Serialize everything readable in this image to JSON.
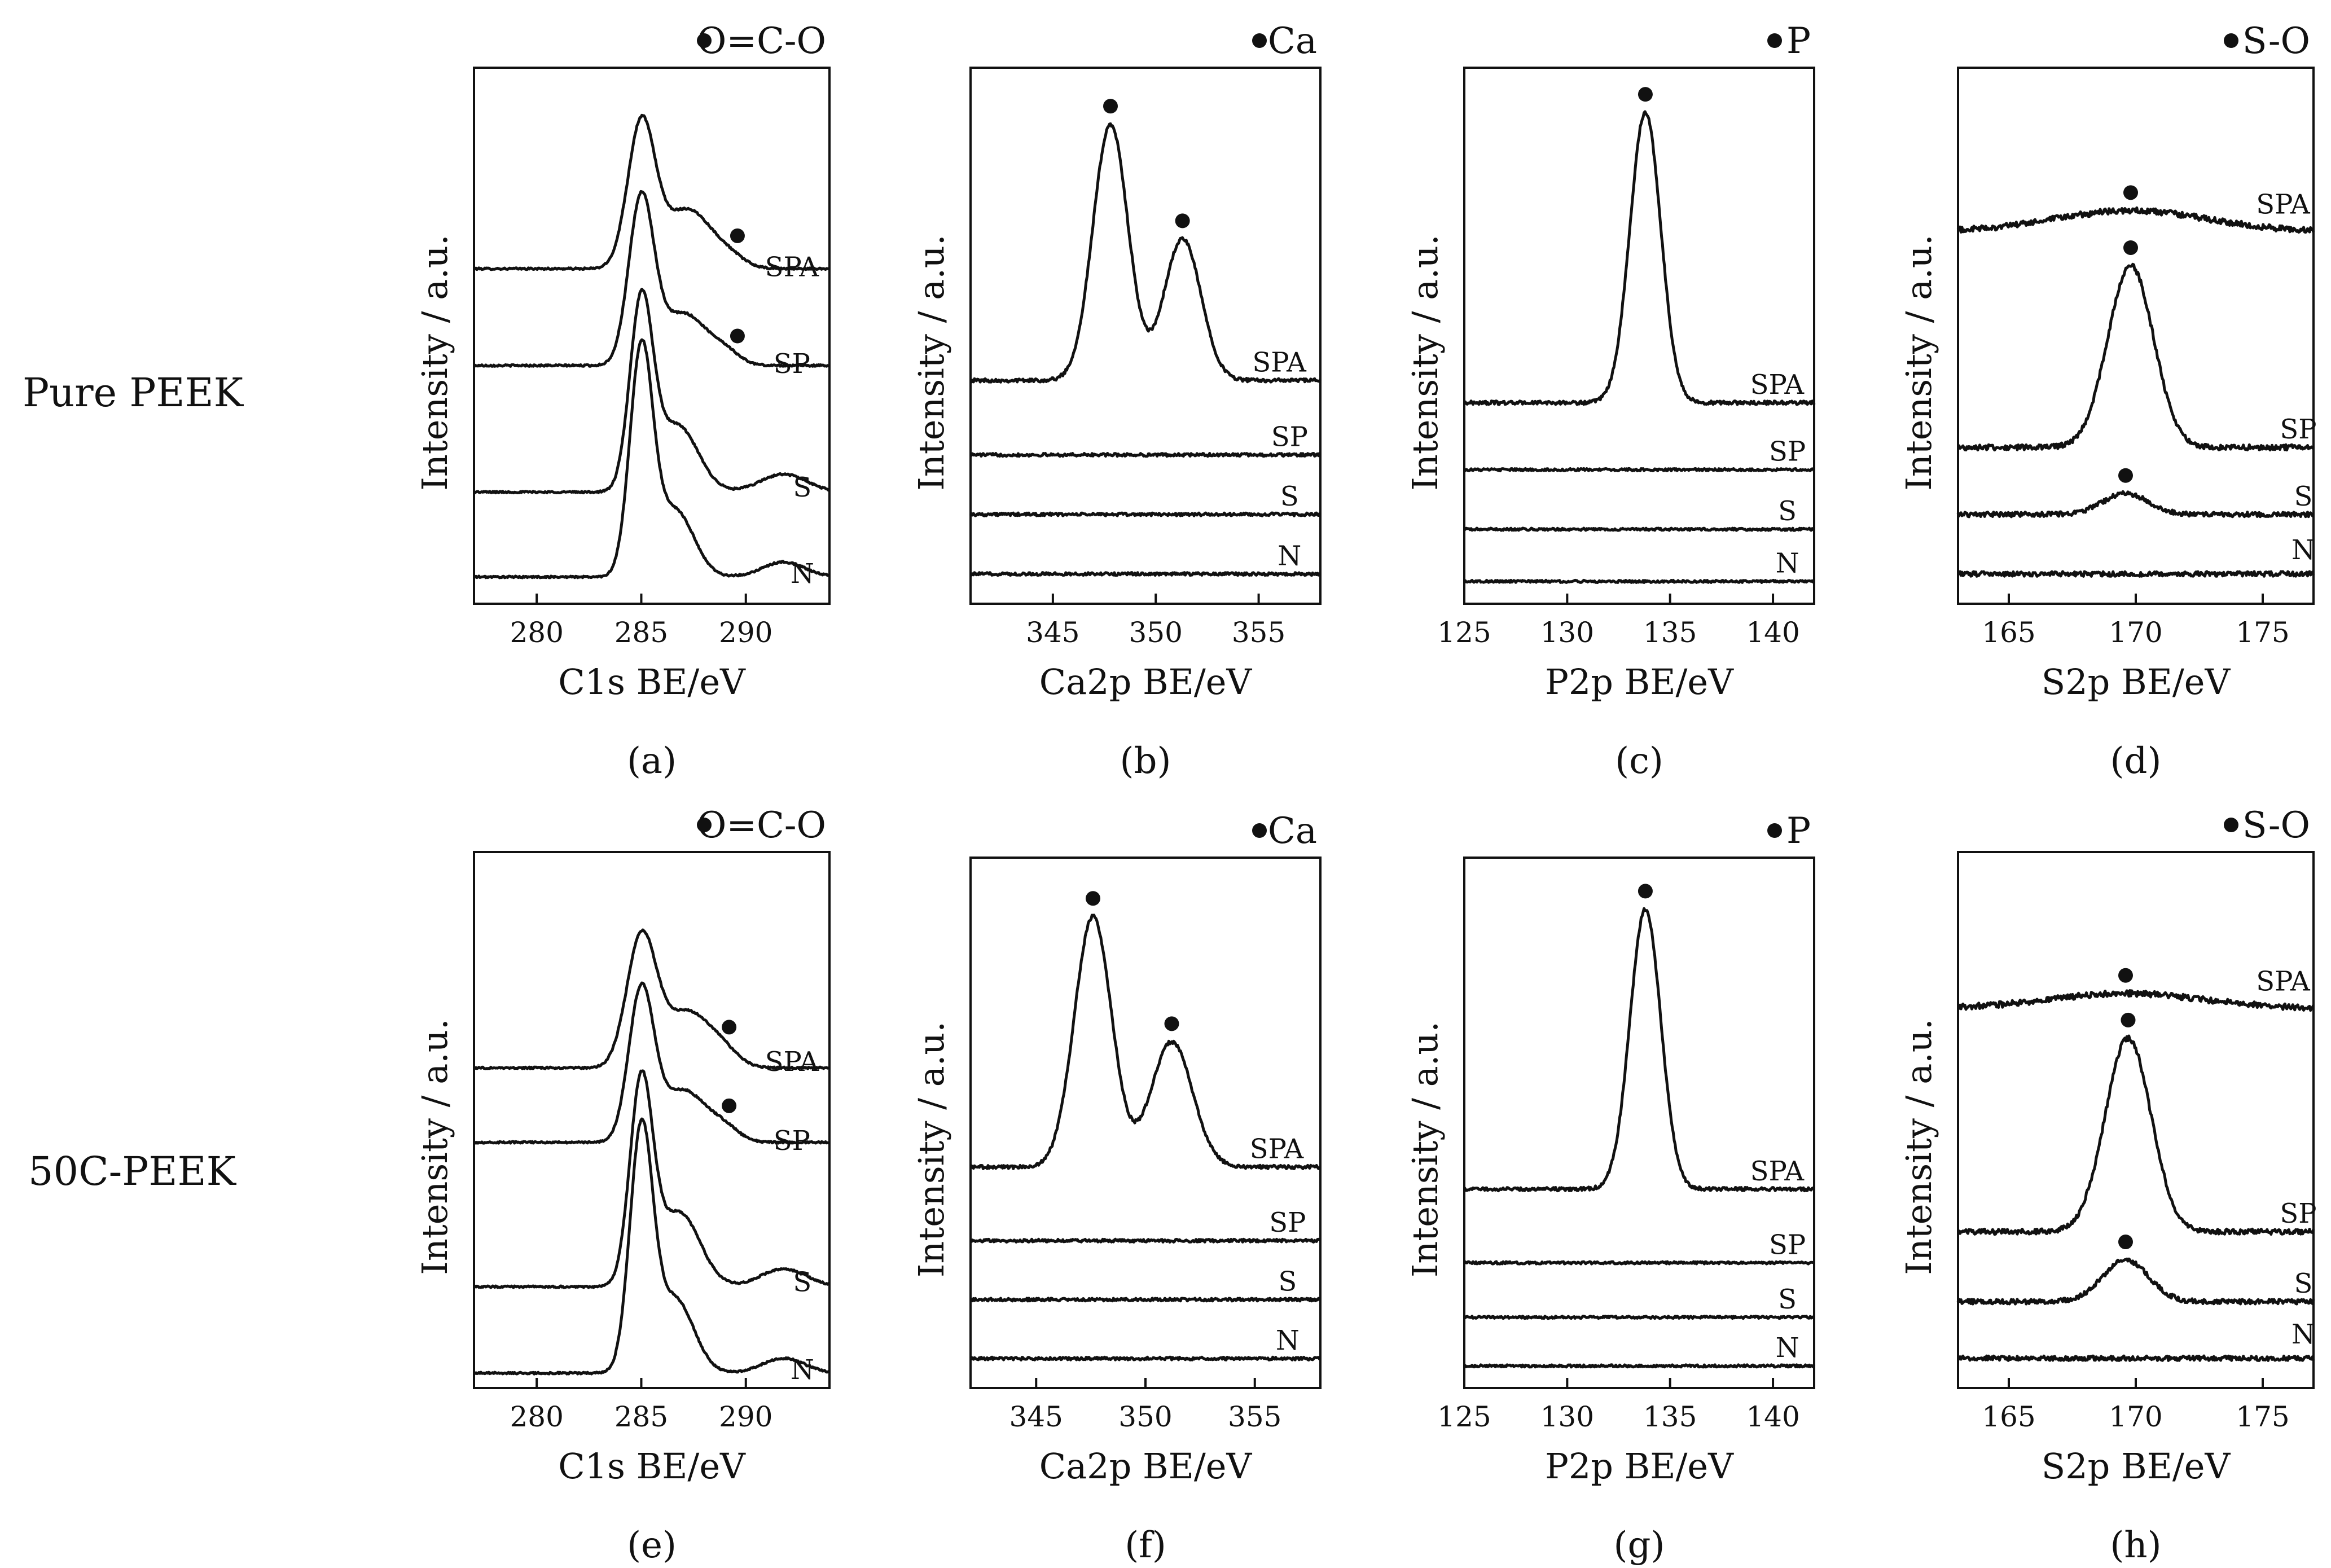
{
  "rows": [
    {
      "label": "Pure PEEK"
    },
    {
      "label": "50C-PEEK"
    }
  ],
  "panel_letters": [
    "(a)",
    "(b)",
    "(c)",
    "(d)",
    "(e)",
    "(f)",
    "(g)",
    "(h)"
  ],
  "chart_data": [
    {
      "type": "line",
      "panel": "(a)",
      "row": "Pure PEEK",
      "xlabel": "C1s BE/eV",
      "ylabel": "Intensity / a.u.",
      "xlim": [
        277,
        294
      ],
      "xticks": [
        280,
        285,
        290
      ],
      "legend": "O=C-O",
      "legend_marker": "filled-circle",
      "legend_position": "top-right",
      "series": [
        {
          "name": "SPA",
          "offset": 2.25,
          "noise": 0.006,
          "peaks": [
            [
              285.0,
              0.95,
              0.65
            ],
            [
              287.2,
              0.4,
              1.2
            ],
            [
              289.3,
              0.05,
              0.7
            ]
          ],
          "marker_x": 289.6,
          "label_x": 292.2,
          "label_dy": -0.05
        },
        {
          "name": "SP",
          "offset": 1.6,
          "noise": 0.006,
          "peaks": [
            [
              285.0,
              1.1,
              0.6
            ],
            [
              287.0,
              0.35,
              1.1
            ],
            [
              289.0,
              0.08,
              0.7
            ]
          ],
          "marker_x": 289.6,
          "label_x": 292.2,
          "label_dy": -0.05
        },
        {
          "name": "S",
          "offset": 0.75,
          "noise": 0.006,
          "peaks": [
            [
              285.0,
              1.25,
              0.55
            ],
            [
              286.7,
              0.45,
              1.0
            ],
            [
              291.8,
              0.12,
              1.1
            ]
          ],
          "label_x": 292.7,
          "label_dy": -0.03
        },
        {
          "name": "N",
          "offset": 0.18,
          "noise": 0.006,
          "peaks": [
            [
              285.0,
              1.5,
              0.55
            ],
            [
              286.6,
              0.45,
              0.9
            ],
            [
              291.8,
              0.1,
              1.0
            ]
          ],
          "label_x": 292.7,
          "label_dy": -0.04
        }
      ]
    },
    {
      "type": "line",
      "panel": "(b)",
      "row": "Pure PEEK",
      "xlabel": "Ca2p BE/eV",
      "ylabel": "Intensity / a.u.",
      "xlim": [
        341,
        358
      ],
      "xticks": [
        345,
        350,
        355
      ],
      "legend": "Ca",
      "legend_marker": "filled-circle",
      "legend_position": "top-right",
      "series": [
        {
          "name": "SPA",
          "offset": 1.5,
          "noise": 0.012,
          "peaks": [
            [
              347.8,
              1.72,
              0.85
            ],
            [
              351.3,
              0.95,
              0.9
            ]
          ],
          "marker_x": [
            347.8,
            351.3
          ],
          "label_x": 356.0,
          "label_dy": 0.06
        },
        {
          "name": "SP",
          "offset": 1.0,
          "noise": 0.01,
          "peaks": [],
          "label_x": 356.5,
          "label_dy": 0.06
        },
        {
          "name": "S",
          "offset": 0.6,
          "noise": 0.01,
          "peaks": [],
          "label_x": 356.5,
          "label_dy": 0.06
        },
        {
          "name": "N",
          "offset": 0.2,
          "noise": 0.01,
          "peaks": [],
          "label_x": 356.5,
          "label_dy": 0.06
        }
      ]
    },
    {
      "type": "line",
      "panel": "(c)",
      "row": "Pure PEEK",
      "xlabel": "P2p BE/eV",
      "ylabel": "Intensity / a.u.",
      "xlim": [
        125,
        142
      ],
      "xticks": [
        125,
        130,
        135,
        140
      ],
      "legend": "P",
      "legend_marker": "filled-circle",
      "legend_position": "top-right",
      "series": [
        {
          "name": "SPA",
          "offset": 1.35,
          "noise": 0.012,
          "peaks": [
            [
              133.8,
              1.95,
              0.75
            ]
          ],
          "marker_x": 133.8,
          "label_x": 140.2,
          "label_dy": 0.06
        },
        {
          "name": "SP",
          "offset": 0.9,
          "noise": 0.008,
          "peaks": [],
          "label_x": 140.7,
          "label_dy": 0.06
        },
        {
          "name": "S",
          "offset": 0.5,
          "noise": 0.008,
          "peaks": [],
          "label_x": 140.7,
          "label_dy": 0.06
        },
        {
          "name": "N",
          "offset": 0.15,
          "noise": 0.008,
          "peaks": [],
          "label_x": 140.7,
          "label_dy": 0.06
        }
      ]
    },
    {
      "type": "line",
      "panel": "(d)",
      "row": "Pure PEEK",
      "xlabel": "S2p BE/eV",
      "ylabel": "Intensity / a.u.",
      "xlim": [
        163,
        177
      ],
      "xticks": [
        165,
        170,
        175
      ],
      "legend": "S-O",
      "legend_marker": "filled-circle",
      "legend_position": "top-right",
      "series": [
        {
          "name": "SPA",
          "offset": 2.5,
          "noise": 0.02,
          "peaks": [
            [
              169.8,
              0.14,
              3.0
            ]
          ],
          "marker_x": 169.8,
          "label_x": 175.8,
          "label_dy": 0.12
        },
        {
          "name": "SP",
          "offset": 1.05,
          "noise": 0.018,
          "peaks": [
            [
              169.8,
              1.22,
              0.9
            ]
          ],
          "marker_x": 169.8,
          "label_x": 176.4,
          "label_dy": 0.06
        },
        {
          "name": "S",
          "offset": 0.6,
          "noise": 0.016,
          "peaks": [
            [
              169.6,
              0.14,
              0.9
            ]
          ],
          "marker_x": 169.6,
          "label_x": 176.6,
          "label_dy": 0.06
        },
        {
          "name": "N",
          "offset": 0.2,
          "noise": 0.016,
          "peaks": [],
          "label_x": 176.6,
          "label_dy": 0.1
        }
      ]
    },
    {
      "type": "line",
      "panel": "(e)",
      "row": "50C-PEEK",
      "xlabel": "C1s BE/eV",
      "ylabel": "Intensity / a.u.",
      "xlim": [
        277,
        294
      ],
      "xticks": [
        280,
        285,
        290
      ],
      "legend": "O=C-O",
      "legend_marker": "filled-circle",
      "legend_position": "top-right",
      "series": [
        {
          "name": "SPA",
          "offset": 2.15,
          "noise": 0.006,
          "peaks": [
            [
              285.0,
              0.85,
              0.7
            ],
            [
              287.2,
              0.38,
              1.2
            ],
            [
              289.0,
              0.06,
              0.7
            ]
          ],
          "marker_x": 289.2,
          "label_x": 292.2,
          "label_dy": -0.02
        },
        {
          "name": "SP",
          "offset": 1.65,
          "noise": 0.006,
          "peaks": [
            [
              285.0,
              1.0,
              0.6
            ],
            [
              287.0,
              0.35,
              1.1
            ],
            [
              289.0,
              0.08,
              0.7
            ]
          ],
          "marker_x": 289.2,
          "label_x": 292.2,
          "label_dy": -0.05
        },
        {
          "name": "S",
          "offset": 0.68,
          "noise": 0.006,
          "peaks": [
            [
              285.0,
              1.35,
              0.55
            ],
            [
              286.8,
              0.5,
              1.0
            ],
            [
              291.8,
              0.12,
              1.1
            ]
          ],
          "label_x": 292.7,
          "label_dy": -0.03
        },
        {
          "name": "N",
          "offset": 0.1,
          "noise": 0.006,
          "peaks": [
            [
              285.0,
              1.6,
              0.55
            ],
            [
              286.6,
              0.5,
              0.9
            ],
            [
              291.8,
              0.1,
              1.0
            ]
          ],
          "label_x": 292.7,
          "label_dy": -0.04
        }
      ]
    },
    {
      "type": "line",
      "panel": "(f)",
      "row": "50C-PEEK",
      "xlabel": "Ca2p BE/eV",
      "ylabel": "Intensity / a.u.",
      "xlim": [
        342,
        358
      ],
      "xticks": [
        345,
        350,
        355
      ],
      "legend": "Ca",
      "legend_marker": "filled-circle",
      "legend_position": "top-right",
      "series": [
        {
          "name": "SPA",
          "offset": 1.5,
          "noise": 0.012,
          "peaks": [
            [
              347.6,
              1.7,
              0.85
            ],
            [
              351.2,
              0.85,
              0.95
            ]
          ],
          "marker_x": [
            347.6,
            351.2
          ],
          "label_x": 356.0,
          "label_dy": 0.06
        },
        {
          "name": "SP",
          "offset": 1.0,
          "noise": 0.01,
          "peaks": [],
          "label_x": 356.5,
          "label_dy": 0.06
        },
        {
          "name": "S",
          "offset": 0.6,
          "noise": 0.01,
          "peaks": [],
          "label_x": 356.5,
          "label_dy": 0.06
        },
        {
          "name": "N",
          "offset": 0.2,
          "noise": 0.01,
          "peaks": [],
          "label_x": 356.5,
          "label_dy": 0.06
        }
      ]
    },
    {
      "type": "line",
      "panel": "(g)",
      "row": "50C-PEEK",
      "xlabel": "P2p BE/eV",
      "ylabel": "Intensity / a.u.",
      "xlim": [
        125,
        142
      ],
      "xticks": [
        125,
        130,
        135,
        140
      ],
      "legend": "P",
      "legend_marker": "filled-circle",
      "legend_position": "top-right",
      "series": [
        {
          "name": "SPA",
          "offset": 1.35,
          "noise": 0.012,
          "peaks": [
            [
              133.8,
              1.9,
              0.75
            ]
          ],
          "marker_x": 133.8,
          "label_x": 140.2,
          "label_dy": 0.06
        },
        {
          "name": "SP",
          "offset": 0.85,
          "noise": 0.008,
          "peaks": [],
          "label_x": 140.7,
          "label_dy": 0.06
        },
        {
          "name": "S",
          "offset": 0.48,
          "noise": 0.008,
          "peaks": [],
          "label_x": 140.7,
          "label_dy": 0.06
        },
        {
          "name": "N",
          "offset": 0.15,
          "noise": 0.008,
          "peaks": [],
          "label_x": 140.7,
          "label_dy": 0.06
        }
      ]
    },
    {
      "type": "line",
      "panel": "(h)",
      "row": "50C-PEEK",
      "xlabel": "S2p BE/eV",
      "ylabel": "Intensity / a.u.",
      "xlim": [
        163,
        177
      ],
      "xticks": [
        165,
        170,
        175
      ],
      "legend": "S-O",
      "legend_marker": "filled-circle",
      "legend_position": "top-right",
      "series": [
        {
          "name": "SPA",
          "offset": 2.55,
          "noise": 0.02,
          "peaks": [
            [
              169.6,
              0.1,
              3.0
            ]
          ],
          "marker_x": 169.6,
          "label_x": 175.8,
          "label_dy": 0.12
        },
        {
          "name": "SP",
          "offset": 1.05,
          "noise": 0.018,
          "peaks": [
            [
              169.7,
              1.3,
              0.9
            ]
          ],
          "marker_x": 169.7,
          "label_x": 176.4,
          "label_dy": 0.06
        },
        {
          "name": "S",
          "offset": 0.58,
          "noise": 0.016,
          "peaks": [
            [
              169.6,
              0.28,
              0.9
            ]
          ],
          "marker_x": 169.6,
          "label_x": 176.6,
          "label_dy": 0.06
        },
        {
          "name": "N",
          "offset": 0.2,
          "noise": 0.016,
          "peaks": [],
          "label_x": 176.6,
          "label_dy": 0.1
        }
      ]
    }
  ]
}
